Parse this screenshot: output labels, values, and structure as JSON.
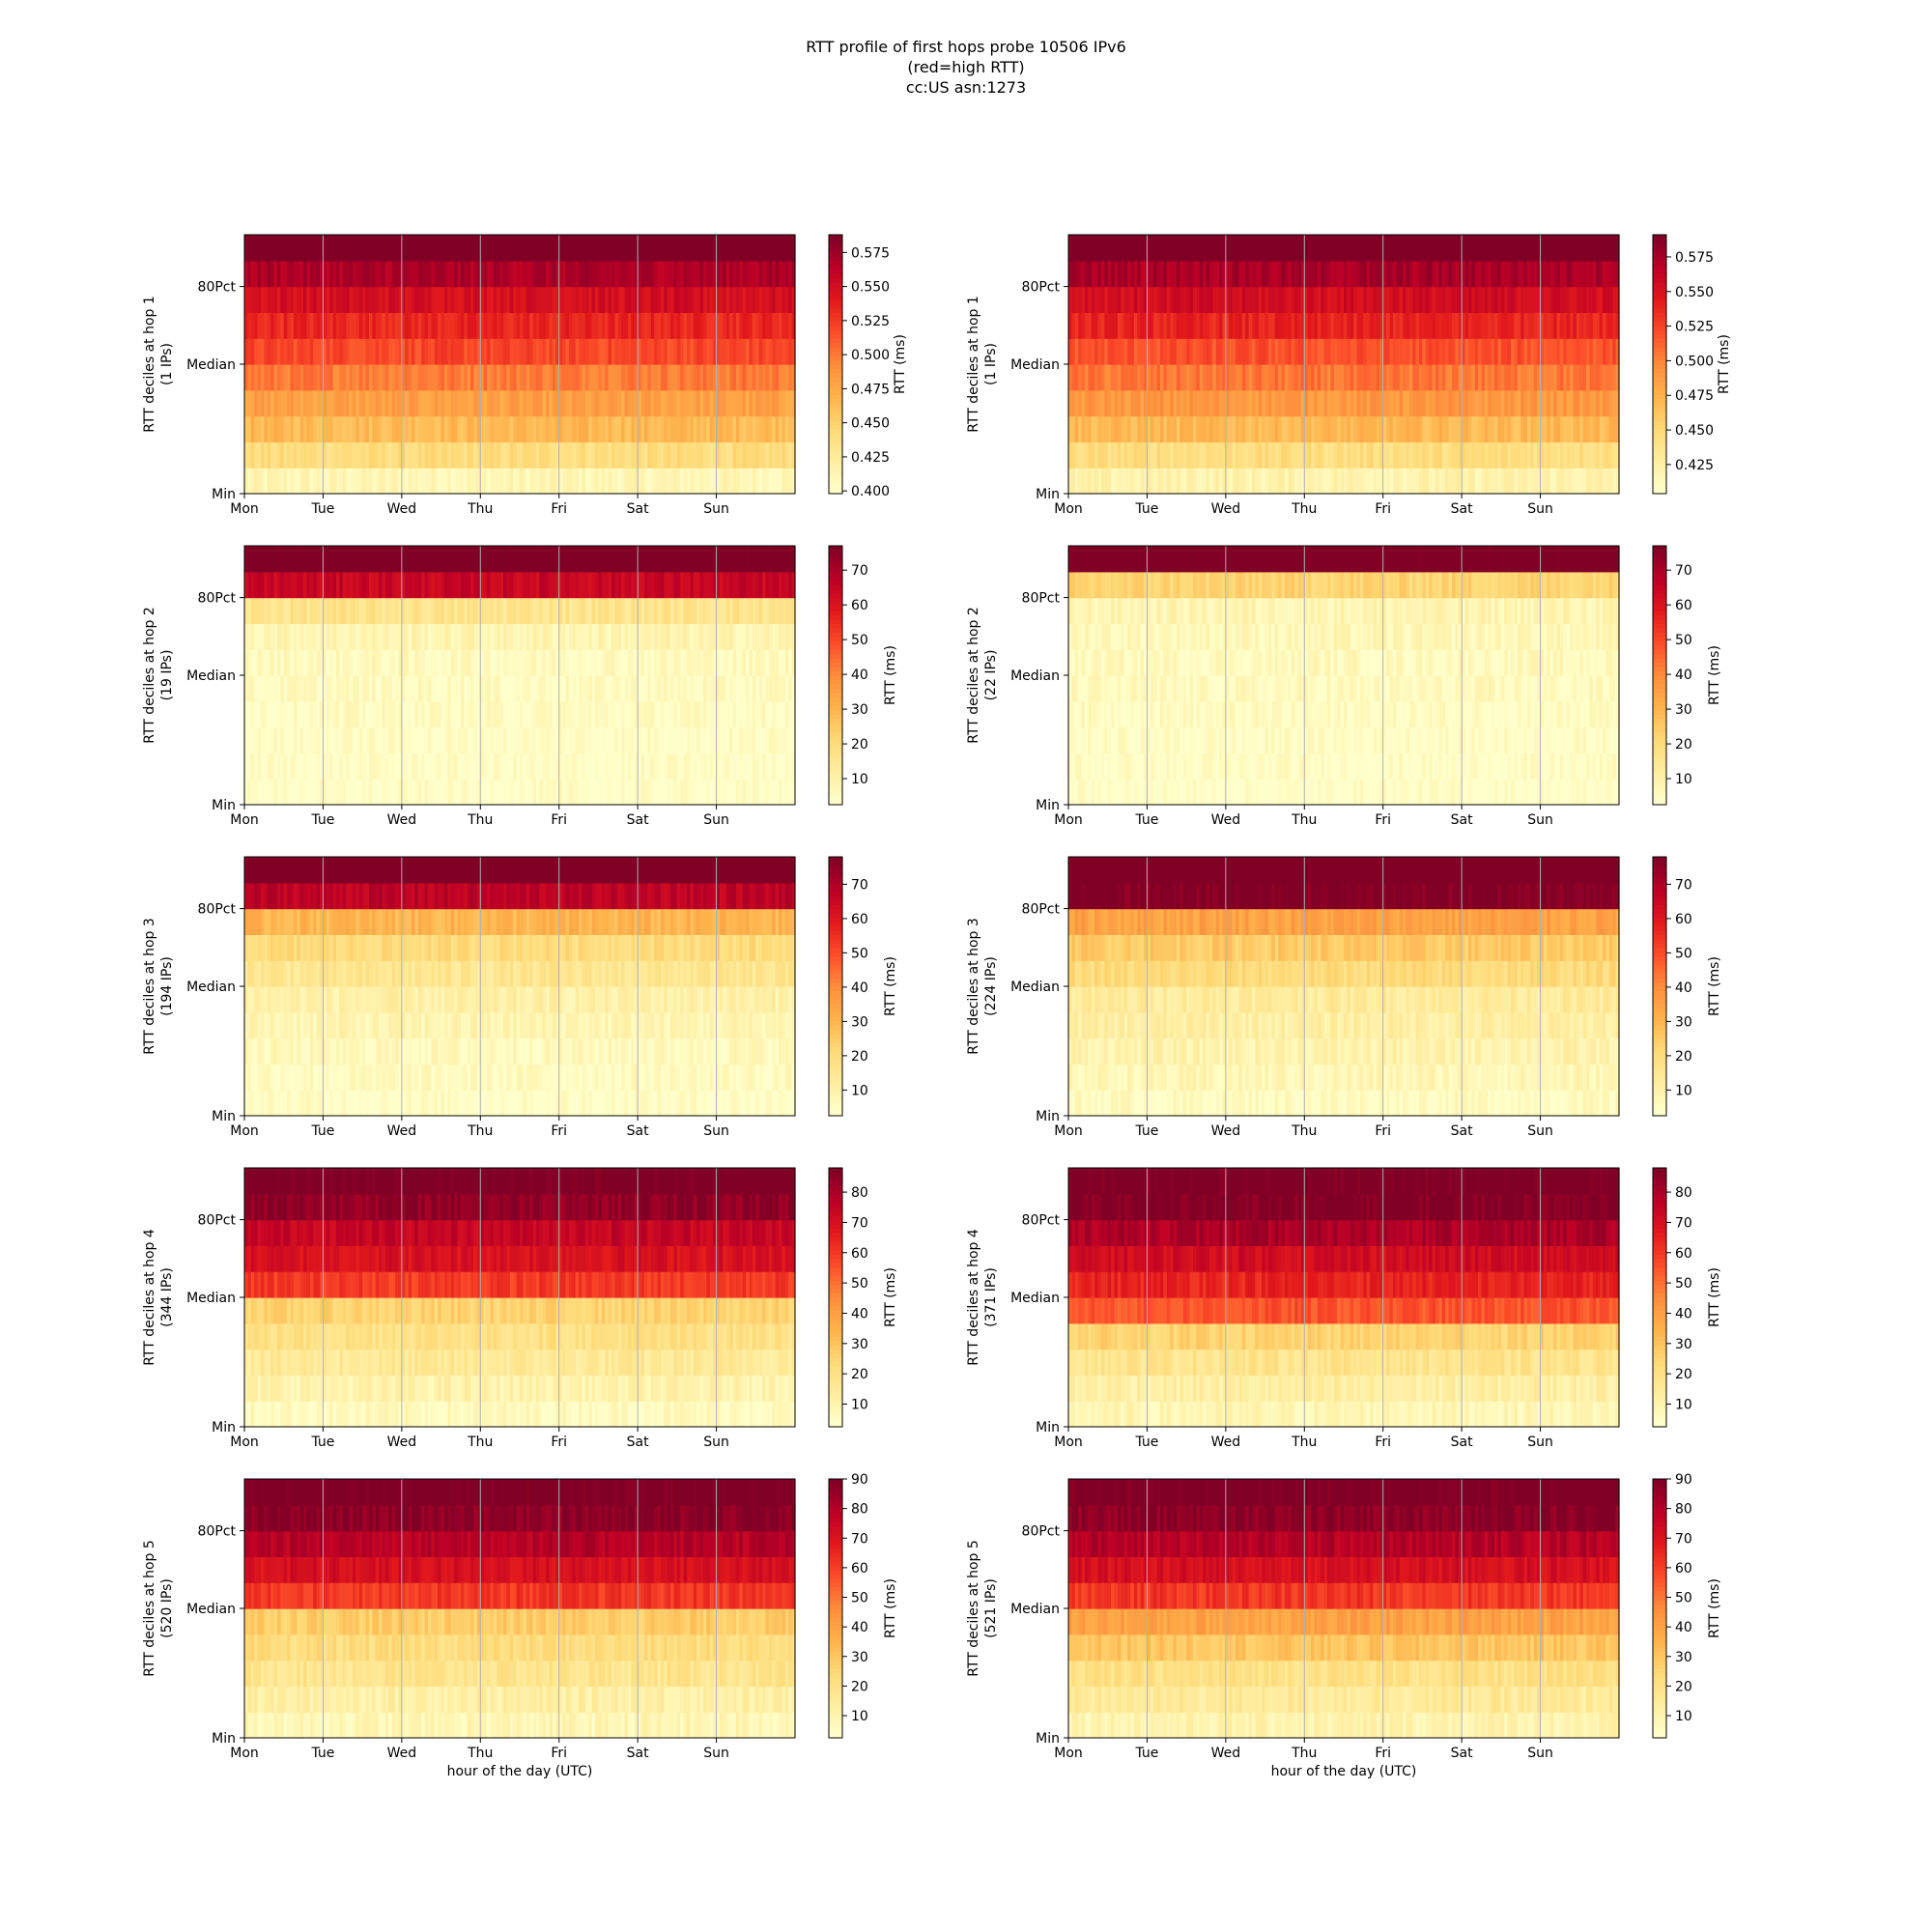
{
  "figure": {
    "title_lines": [
      "RTT profile of first hops probe 10506 IPv6",
      "(red=high RTT)",
      "cc:US asn:1273"
    ]
  },
  "colormap": {
    "name": "YlOrRd",
    "stops": [
      "#ffffcc",
      "#ffeda0",
      "#fed976",
      "#feb24c",
      "#fd8d3c",
      "#fc4e2a",
      "#e31a1c",
      "#bd0026",
      "#800026"
    ]
  },
  "chart_data": [
    {
      "type": "heatmap",
      "column": "left",
      "hop": 1,
      "ylabel_lines": [
        "RTT deciles at hop 1",
        "(1 IPs)"
      ],
      "xlabel": "",
      "ytick_labels": [
        "Min",
        "Median",
        "80Pct"
      ],
      "xtick_labels": [
        "Mon",
        "Tue",
        "Wed",
        "Thu",
        "Fri",
        "Sat",
        "Sun"
      ],
      "colorbar_label": "RTT (ms)",
      "colorbar_ticks": [
        "0.400",
        "0.425",
        "0.450",
        "0.475",
        "0.500",
        "0.525",
        "0.550",
        "0.575"
      ],
      "colorbar_range": [
        0.398,
        0.588
      ],
      "decile_rtt_ms": [
        0.41,
        0.44,
        0.465,
        0.48,
        0.5,
        0.52,
        0.535,
        0.55,
        0.57,
        0.6
      ]
    },
    {
      "type": "heatmap",
      "column": "right",
      "hop": 1,
      "ylabel_lines": [
        "RTT deciles at hop 1",
        "(1 IPs)"
      ],
      "xlabel": "",
      "ytick_labels": [
        "Min",
        "Median",
        "80Pct"
      ],
      "xtick_labels": [
        "Mon",
        "Tue",
        "Wed",
        "Thu",
        "Fri",
        "Sat",
        "Sun"
      ],
      "colorbar_label": "RTT (ms)",
      "colorbar_ticks": [
        "0.425",
        "0.450",
        "0.475",
        "0.500",
        "0.525",
        "0.550",
        "0.575"
      ],
      "colorbar_range": [
        0.404,
        0.591
      ],
      "decile_rtt_ms": [
        0.42,
        0.445,
        0.47,
        0.49,
        0.505,
        0.52,
        0.54,
        0.555,
        0.575,
        0.6
      ]
    },
    {
      "type": "heatmap",
      "column": "left",
      "hop": 2,
      "ylabel_lines": [
        "RTT deciles at hop 2",
        "(19 IPs)"
      ],
      "xlabel": "",
      "ytick_labels": [
        "Min",
        "Median",
        "80Pct"
      ],
      "xtick_labels": [
        "Mon",
        "Tue",
        "Wed",
        "Thu",
        "Fri",
        "Sat",
        "Sun"
      ],
      "colorbar_label": "RTT (ms)",
      "colorbar_ticks": [
        "10",
        "20",
        "30",
        "40",
        "50",
        "60",
        "70"
      ],
      "colorbar_range": [
        2.5,
        77
      ],
      "decile_rtt_ms": [
        3,
        3.5,
        4,
        4.5,
        5,
        5.5,
        8,
        16,
        65,
        80
      ]
    },
    {
      "type": "heatmap",
      "column": "right",
      "hop": 2,
      "ylabel_lines": [
        "RTT deciles at hop 2",
        "(22 IPs)"
      ],
      "xlabel": "",
      "ytick_labels": [
        "Min",
        "Median",
        "80Pct"
      ],
      "xtick_labels": [
        "Mon",
        "Tue",
        "Wed",
        "Thu",
        "Fri",
        "Sat",
        "Sun"
      ],
      "colorbar_label": "RTT (ms)",
      "colorbar_ticks": [
        "10",
        "20",
        "30",
        "40",
        "50",
        "60",
        "70"
      ],
      "colorbar_range": [
        2.5,
        77
      ],
      "decile_rtt_ms": [
        3,
        3.5,
        4,
        4.5,
        5,
        5.5,
        6.5,
        8,
        22,
        80
      ]
    },
    {
      "type": "heatmap",
      "column": "left",
      "hop": 3,
      "ylabel_lines": [
        "RTT deciles at hop 3",
        "(194 IPs)"
      ],
      "xlabel": "",
      "ytick_labels": [
        "Min",
        "Median",
        "80Pct"
      ],
      "xtick_labels": [
        "Mon",
        "Tue",
        "Wed",
        "Thu",
        "Fri",
        "Sat",
        "Sun"
      ],
      "colorbar_label": "RTT (ms)",
      "colorbar_ticks": [
        "10",
        "20",
        "30",
        "40",
        "50",
        "60",
        "70"
      ],
      "colorbar_range": [
        2.5,
        78
      ],
      "decile_rtt_ms": [
        4,
        5,
        6,
        8,
        10,
        15,
        20,
        30,
        68,
        82
      ]
    },
    {
      "type": "heatmap",
      "column": "right",
      "hop": 3,
      "ylabel_lines": [
        "RTT deciles at hop 3",
        "(224 IPs)"
      ],
      "xlabel": "",
      "ytick_labels": [
        "Min",
        "Median",
        "80Pct"
      ],
      "xtick_labels": [
        "Mon",
        "Tue",
        "Wed",
        "Thu",
        "Fri",
        "Sat",
        "Sun"
      ],
      "colorbar_label": "RTT (ms)",
      "colorbar_ticks": [
        "10",
        "20",
        "30",
        "40",
        "50",
        "60",
        "70"
      ],
      "colorbar_range": [
        2.5,
        78
      ],
      "decile_rtt_ms": [
        5,
        7,
        9,
        11,
        13,
        20,
        25,
        35,
        78,
        82
      ]
    },
    {
      "type": "heatmap",
      "column": "left",
      "hop": 4,
      "ylabel_lines": [
        "RTT deciles at hop 4",
        "(344 IPs)"
      ],
      "xlabel": "",
      "ytick_labels": [
        "Min",
        "Median",
        "80Pct"
      ],
      "xtick_labels": [
        "Mon",
        "Tue",
        "Wed",
        "Thu",
        "Fri",
        "Sat",
        "Sun"
      ],
      "colorbar_label": "RTT (ms)",
      "colorbar_ticks": [
        "10",
        "20",
        "30",
        "40",
        "50",
        "60",
        "70",
        "80"
      ],
      "colorbar_range": [
        2.5,
        88
      ],
      "decile_rtt_ms": [
        6,
        10,
        15,
        20,
        25,
        60,
        70,
        75,
        85,
        90
      ]
    },
    {
      "type": "heatmap",
      "column": "right",
      "hop": 4,
      "ylabel_lines": [
        "RTT deciles at hop 4",
        "(371 IPs)"
      ],
      "xlabel": "",
      "ytick_labels": [
        "Min",
        "Median",
        "80Pct"
      ],
      "xtick_labels": [
        "Mon",
        "Tue",
        "Wed",
        "Thu",
        "Fri",
        "Sat",
        "Sun"
      ],
      "colorbar_label": "RTT (ms)",
      "colorbar_ticks": [
        "10",
        "20",
        "30",
        "40",
        "50",
        "60",
        "70",
        "80"
      ],
      "colorbar_range": [
        2.5,
        88
      ],
      "decile_rtt_ms": [
        8,
        12,
        18,
        25,
        55,
        65,
        72,
        80,
        88,
        90
      ]
    },
    {
      "type": "heatmap",
      "column": "left",
      "hop": 5,
      "ylabel_lines": [
        "RTT deciles at hop 5",
        "(520 IPs)"
      ],
      "xlabel": "hour of the day (UTC)",
      "ytick_labels": [
        "Min",
        "Median",
        "80Pct"
      ],
      "xtick_labels": [
        "Mon",
        "Tue",
        "Wed",
        "Thu",
        "Fri",
        "Sat",
        "Sun"
      ],
      "colorbar_label": "RTT (ms)",
      "colorbar_ticks": [
        "10",
        "20",
        "30",
        "40",
        "50",
        "60",
        "70",
        "80",
        "90"
      ],
      "colorbar_range": [
        2.5,
        90
      ],
      "decile_rtt_ms": [
        8,
        12,
        18,
        22,
        28,
        62,
        72,
        80,
        88,
        92
      ]
    },
    {
      "type": "heatmap",
      "column": "right",
      "hop": 5,
      "ylabel_lines": [
        "RTT deciles at hop 5",
        "(521 IPs)"
      ],
      "xlabel": "hour of the day (UTC)",
      "ytick_labels": [
        "Min",
        "Median",
        "80Pct"
      ],
      "xtick_labels": [
        "Mon",
        "Tue",
        "Wed",
        "Thu",
        "Fri",
        "Sat",
        "Sun"
      ],
      "colorbar_label": "RTT (ms)",
      "colorbar_ticks": [
        "10",
        "20",
        "30",
        "40",
        "50",
        "60",
        "70",
        "80",
        "90"
      ],
      "colorbar_range": [
        2.5,
        90
      ],
      "decile_rtt_ms": [
        10,
        15,
        20,
        30,
        40,
        62,
        72,
        80,
        88,
        92
      ]
    }
  ]
}
